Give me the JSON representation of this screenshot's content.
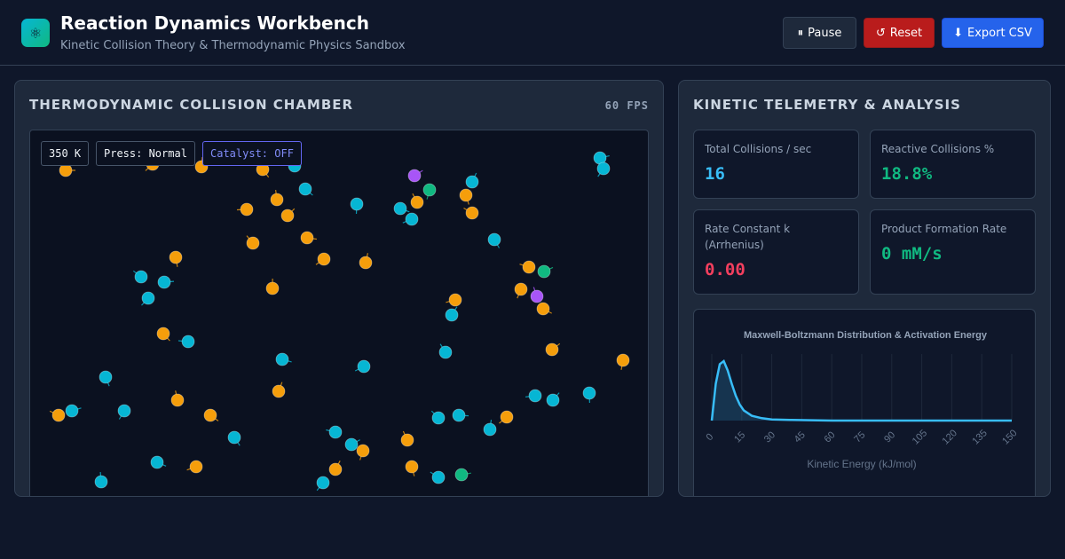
{
  "header": {
    "logo_icon": "atom-icon",
    "logo_glyph": "⚛",
    "title": "Reaction Dynamics Workbench",
    "subtitle": "Kinetic Collision Theory & Thermodynamic Physics Sandbox"
  },
  "toolbar": {
    "pause": {
      "icon": "pause-icon",
      "glyph": "⏸",
      "label": "Pause"
    },
    "reset": {
      "icon": "reset-icon",
      "glyph": "↺",
      "label": "Reset"
    },
    "export": {
      "icon": "download-icon",
      "glyph": "⬇",
      "label": "Export CSV"
    }
  },
  "chamber": {
    "title": "THERMODYNAMIC COLLISION CHAMBER",
    "fps": "60 FPS",
    "temperature": "350 K",
    "pressure": "Press: Normal",
    "catalyst": "Catalyst: OFF",
    "particle_colors": {
      "reactant_a": "#06b6d4",
      "reactant_b": "#f59e0b",
      "product": "#10b981",
      "intermediate": "#a855f7"
    }
  },
  "telemetry": {
    "title": "KINETIC TELEMETRY & ANALYSIS",
    "stats": [
      {
        "label": "Total Collisions / sec",
        "value": "16",
        "color": "#38bdf8"
      },
      {
        "label": "Reactive Collisions %",
        "value": "18.8%",
        "color": "#10b981"
      },
      {
        "label": "Rate Constant k (Arrhenius)",
        "value": "0.00",
        "color": "#f43f5e"
      },
      {
        "label": "Product Formation Rate",
        "value": "0 mM/s",
        "color": "#10b981"
      }
    ]
  },
  "chart_data": {
    "type": "area",
    "title": "Maxwell-Boltzmann Distribution & Activation Energy",
    "xlabel": "Kinetic Energy (kJ/mol)",
    "ylabel": "",
    "xlim": [
      0,
      150
    ],
    "ylim": [
      0,
      1
    ],
    "x_ticks": [
      "0",
      "15",
      "30",
      "45",
      "60",
      "75",
      "90",
      "105",
      "120",
      "135",
      "150"
    ],
    "x": [
      0,
      2,
      4,
      6,
      8,
      10,
      12,
      14,
      16,
      20,
      25,
      30,
      40,
      60,
      80,
      100,
      120,
      150
    ],
    "y": [
      0.0,
      0.62,
      0.95,
      1.0,
      0.84,
      0.62,
      0.42,
      0.27,
      0.17,
      0.08,
      0.04,
      0.02,
      0.01,
      0.0,
      0.0,
      0.0,
      0.0,
      0.0
    ],
    "line_color": "#38bdf8",
    "grid": true
  }
}
